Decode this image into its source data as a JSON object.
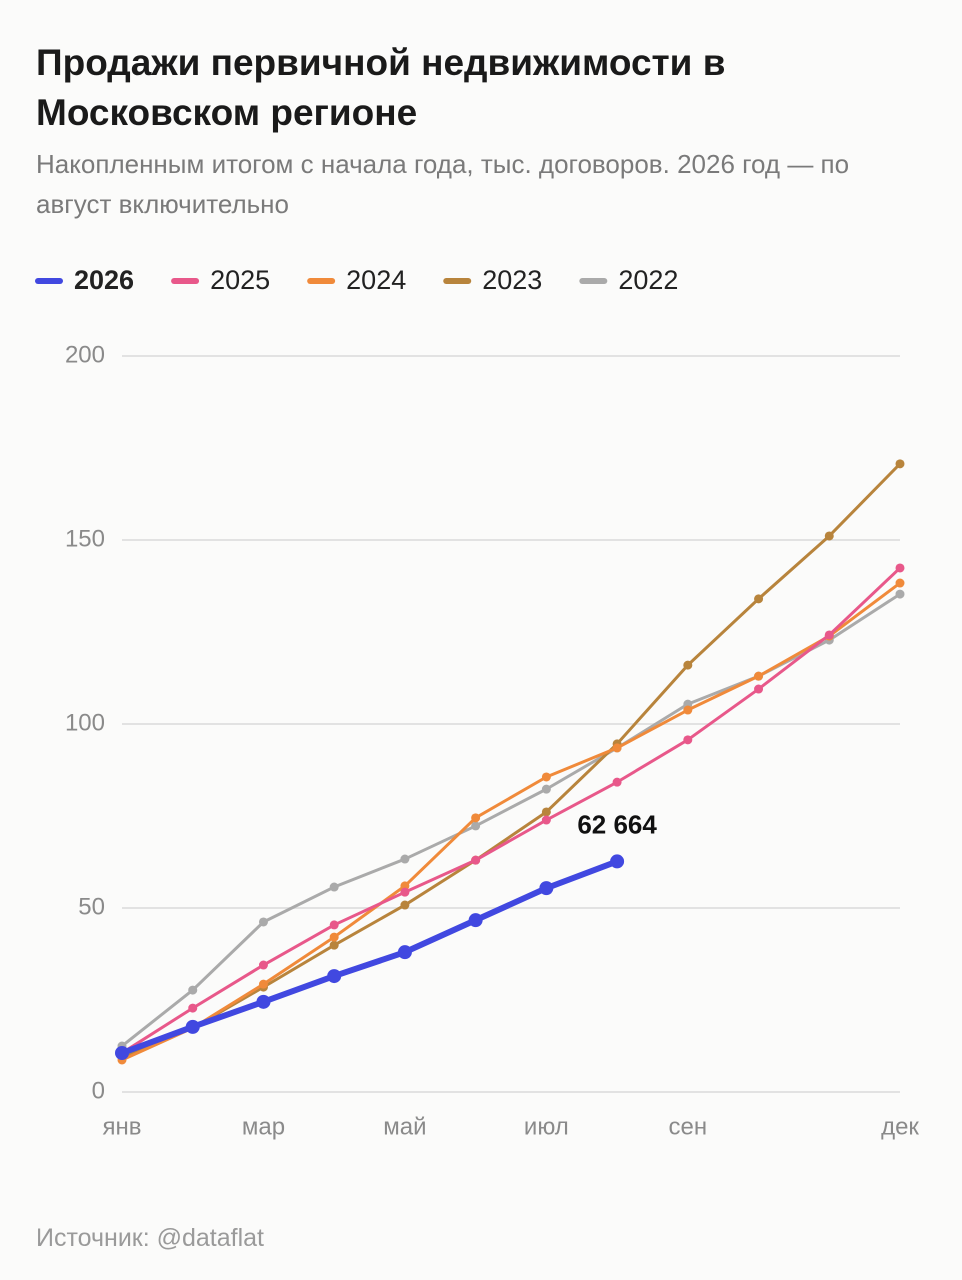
{
  "chart_data": {
    "type": "line",
    "title": "Продажи первичной недвижимости в Московском регионе",
    "subtitle": "Накопленным итогом с начала года, тыс. договоров. 2026 год — по август включительно",
    "source": "Источник: @dataflat",
    "categories": [
      "янв",
      null,
      "мар",
      null,
      "май",
      null,
      "июл",
      null,
      "сен",
      null,
      null,
      "дек"
    ],
    "ylim": [
      0,
      200
    ],
    "yticks": [
      0,
      50,
      100,
      150,
      200
    ],
    "grid": true,
    "series": [
      {
        "name": "2026",
        "color": "#4148e0",
        "values": [
          10.6,
          17.7,
          24.5,
          31.5,
          38,
          46.7,
          55.4,
          62.664,
          null,
          null,
          null,
          null
        ],
        "value_labels": [
          null,
          null,
          null,
          null,
          null,
          null,
          null,
          "62 664",
          null,
          null,
          null,
          null
        ]
      },
      {
        "name": "2025",
        "color": "#e8588a",
        "values": [
          10.6,
          22.8,
          34.5,
          45.4,
          54.3,
          63,
          73.9,
          84.2,
          95.7,
          109.5,
          124.2,
          142.4
        ]
      },
      {
        "name": "2024",
        "color": "#f08a3a",
        "values": [
          8.7,
          17.4,
          29.3,
          42.1,
          56,
          74.5,
          85.6,
          93.5,
          103.8,
          113,
          123.9,
          138.3
        ]
      },
      {
        "name": "2023",
        "color": "#b8843c",
        "values": [
          9.5,
          17.4,
          28.5,
          39.9,
          50.8,
          63,
          76.1,
          94.6,
          116,
          134,
          151.1,
          170.7
        ]
      },
      {
        "name": "2022",
        "color": "#aaaaaa",
        "values": [
          12.5,
          27.7,
          46.2,
          55.7,
          63.3,
          72.3,
          82.3,
          93.5,
          105.4,
          113,
          122.8,
          135.3
        ]
      }
    ]
  }
}
